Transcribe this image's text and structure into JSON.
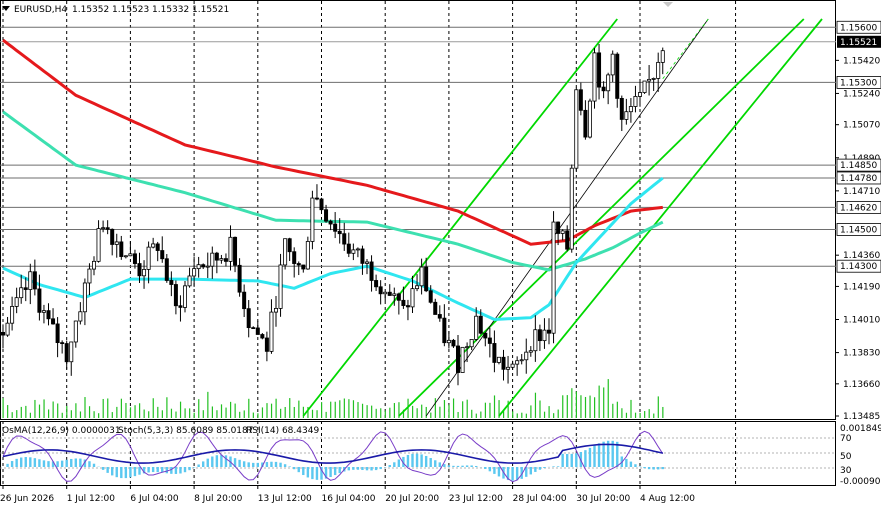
{
  "header": {
    "symbol": "EURUSD,H4",
    "open": "1.15352",
    "high": "1.15523",
    "low": "1.15332",
    "close": "1.15521"
  },
  "indicator_header": {
    "osma": "OsMA(12,26,9) 0.0000031",
    "stoch": "Stoch(5,3,3) 85.6089 85.0187",
    "rsi": "RSI(14) 68.4349"
  },
  "colors": {
    "background": "#ffffff",
    "candle": "#000000",
    "ma_red": "#e5191c",
    "ma_teal": "#3de0b0",
    "ma_cyan": "#2fe6f0",
    "channel_green": "#00d800",
    "osma_hist": "#5bc8f0",
    "stoch_line": "#7a3ec8",
    "rsi_line": "#1a1aa8",
    "volume": "#22c022",
    "current_price_bg": "#000000"
  },
  "chart_data": {
    "type": "candlestick",
    "symbol": "EURUSD",
    "timeframe": "H4",
    "ylim": [
      1.13485,
      1.15645
    ],
    "price_ticks": [
      "1.15600",
      "1.15521",
      "1.15420",
      "1.15300",
      "1.15240",
      "1.15070",
      "1.14890",
      "1.14850",
      "1.14780",
      "1.14710",
      "1.14620",
      "1.14500",
      "1.14360",
      "1.14300",
      "1.14190",
      "1.14010",
      "1.13830",
      "1.13660",
      "1.13485"
    ],
    "highlighted_levels": [
      "1.15600",
      "1.15300",
      "1.14850",
      "1.14780",
      "1.14620",
      "1.14500",
      "1.14300"
    ],
    "current_price": "1.15521",
    "x_tick_labels": [
      "26 Jun 2026",
      "1 Jul 12:00",
      "6 Jul 04:00",
      "8 Jul 20:00",
      "13 Jul 12:00",
      "16 Jul 04:00",
      "20 Jul 20:00",
      "23 Jul 12:00",
      "28 Jul 04:00",
      "30 Jul 20:00",
      "4 Aug 12:00"
    ],
    "x_tick_bars": [
      0,
      14,
      28,
      42,
      56,
      70,
      84,
      98,
      112,
      126,
      140
    ],
    "bar_count": 146,
    "ohlc_waypoints": [
      [
        0,
        1.1394
      ],
      [
        6,
        1.1422
      ],
      [
        10,
        1.1398
      ],
      [
        14,
        1.1382
      ],
      [
        18,
        1.1418
      ],
      [
        22,
        1.1455
      ],
      [
        26,
        1.144
      ],
      [
        30,
        1.1428
      ],
      [
        34,
        1.1442
      ],
      [
        38,
        1.1406
      ],
      [
        42,
        1.143
      ],
      [
        46,
        1.1432
      ],
      [
        50,
        1.144
      ],
      [
        54,
        1.14
      ],
      [
        58,
        1.1386
      ],
      [
        62,
        1.144
      ],
      [
        66,
        1.1426
      ],
      [
        68,
        1.147
      ],
      [
        72,
        1.1455
      ],
      [
        76,
        1.144
      ],
      [
        80,
        1.143
      ],
      [
        84,
        1.1418
      ],
      [
        88,
        1.1405
      ],
      [
        92,
        1.1426
      ],
      [
        96,
        1.1396
      ],
      [
        100,
        1.1378
      ],
      [
        104,
        1.1402
      ],
      [
        108,
        1.138
      ],
      [
        112,
        1.1372
      ],
      [
        116,
        1.139
      ],
      [
        120,
        1.1396
      ],
      [
        121,
        1.145
      ],
      [
        124,
        1.144
      ],
      [
        126,
        1.153
      ],
      [
        128,
        1.1505
      ],
      [
        130,
        1.1545
      ],
      [
        132,
        1.152
      ],
      [
        134,
        1.1545
      ],
      [
        136,
        1.1508
      ],
      [
        138,
        1.1515
      ],
      [
        140,
        1.152
      ],
      [
        143,
        1.1535
      ],
      [
        145,
        1.15521
      ]
    ],
    "moving_averages": [
      {
        "name": "MA red",
        "color": "#e5191c",
        "points": [
          [
            0,
            1.1553
          ],
          [
            16,
            1.1523
          ],
          [
            40,
            1.1496
          ],
          [
            60,
            1.1484
          ],
          [
            80,
            1.1474
          ],
          [
            100,
            1.146
          ],
          [
            116,
            1.1442
          ],
          [
            124,
            1.1444
          ],
          [
            130,
            1.1452
          ],
          [
            138,
            1.146
          ],
          [
            145,
            1.1462
          ]
        ]
      },
      {
        "name": "MA teal",
        "color": "#3de0b0",
        "points": [
          [
            0,
            1.1514
          ],
          [
            16,
            1.1485
          ],
          [
            40,
            1.147
          ],
          [
            60,
            1.1455
          ],
          [
            80,
            1.1454
          ],
          [
            100,
            1.1442
          ],
          [
            112,
            1.1432
          ],
          [
            120,
            1.1428
          ],
          [
            128,
            1.1434
          ],
          [
            134,
            1.144
          ],
          [
            140,
            1.1448
          ],
          [
            145,
            1.1454
          ]
        ]
      },
      {
        "name": "MA cyan",
        "color": "#2fe6f0",
        "points": [
          [
            0,
            1.1429
          ],
          [
            8,
            1.142
          ],
          [
            18,
            1.1413
          ],
          [
            28,
            1.1423
          ],
          [
            40,
            1.1423
          ],
          [
            56,
            1.1422
          ],
          [
            64,
            1.1418
          ],
          [
            72,
            1.1426
          ],
          [
            80,
            1.143
          ],
          [
            90,
            1.1422
          ],
          [
            100,
            1.141
          ],
          [
            108,
            1.1401
          ],
          [
            116,
            1.1402
          ],
          [
            120,
            1.1409
          ],
          [
            126,
            1.1432
          ],
          [
            132,
            1.1448
          ],
          [
            138,
            1.1464
          ],
          [
            145,
            1.1478
          ]
        ]
      }
    ],
    "channel_lines": [
      {
        "name": "channel-upper",
        "from": [
          66,
          1.13485
        ],
        "to": [
          135,
          1.15645
        ]
      },
      {
        "name": "channel-lower",
        "from": [
          109,
          1.13485
        ],
        "to": [
          180,
          1.15645
        ]
      },
      {
        "name": "channel-outer",
        "from": [
          87,
          1.13485
        ],
        "to": [
          176,
          1.15645
        ]
      }
    ],
    "trend_lines": [
      {
        "name": "trend-dashed",
        "from": [
          93,
          1.13485
        ],
        "to": [
          155,
          1.15645
        ],
        "style": "dashed"
      }
    ],
    "volume_relative": "small bars along the bottom, taller near 30 Jul",
    "indicator_pane": {
      "osma": "0.0000031",
      "stoch_main": "85.6089",
      "stoch_signal": "85.0187",
      "rsi": "68.4349",
      "left_scale": [
        "0.0018495",
        "-0.000903"
      ],
      "right_levels": [
        "70",
        "50",
        "30"
      ]
    }
  }
}
